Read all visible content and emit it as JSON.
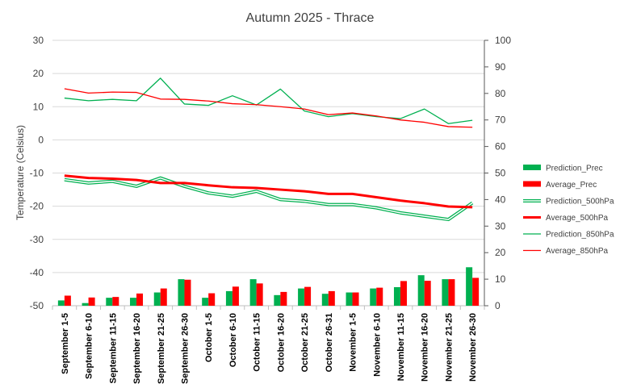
{
  "chart_data": {
    "type": "bar",
    "title": "Autumn 2025 - Thrace",
    "ylabel": "Temperature (Celsius)",
    "ylim": [
      -50,
      30
    ],
    "y2lim": [
      0,
      100
    ],
    "grid": true,
    "legend_position": "right",
    "categories": [
      "September 1-5",
      "September 6-10",
      "September 11-15",
      "September 16-20",
      "September 21-25",
      "September 26-30",
      "October 1-5",
      "October 6-10",
      "October 11-15",
      "October 16-20",
      "October 21-25",
      "October 26-31",
      "November 1-5",
      "November 6-10",
      "November 11-15",
      "November 16-20",
      "November 21-25",
      "November 26-30"
    ],
    "yticks": [
      30,
      20,
      10,
      0,
      -10,
      -20,
      -30,
      -40,
      -50
    ],
    "y2ticks": [
      100,
      90,
      80,
      70,
      60,
      50,
      40,
      30,
      20,
      10,
      0
    ],
    "series": [
      {
        "name": "Prediction_Prec",
        "kind": "bar",
        "axis": "right",
        "color": "#00b050",
        "values": [
          2,
          1,
          3,
          3,
          5,
          10,
          3,
          5.5,
          10,
          4,
          6.5,
          4.5,
          5,
          6.5,
          7,
          11.5,
          10,
          14.5
        ]
      },
      {
        "name": "Average_Prec",
        "kind": "bar",
        "axis": "right",
        "color": "#ff0000",
        "values": [
          3.8,
          3.1,
          3.3,
          4.6,
          6.5,
          9.8,
          4.7,
          7.2,
          8.4,
          5.2,
          7.1,
          5.5,
          5,
          6.8,
          9.3,
          9.4,
          10,
          10.5
        ]
      },
      {
        "name": "Prediction_500hPa",
        "kind": "line",
        "style": "double",
        "axis": "left",
        "color": "#00b050",
        "values": [
          -12,
          -13,
          -12.5,
          -14,
          -11.5,
          -14,
          -16,
          -17,
          -15.5,
          -18,
          -18.5,
          -19.5,
          -19.5,
          -20.5,
          -22,
          -23,
          -24,
          -19
        ]
      },
      {
        "name": "Average_500hPa",
        "kind": "line",
        "axis": "left",
        "color": "#ff0000",
        "values": [
          -10.8,
          -11.5,
          -11.7,
          -12.1,
          -13,
          -13,
          -13.7,
          -14.3,
          -14.5,
          -15,
          -15.5,
          -16.3,
          -16.3,
          -17.3,
          -18.3,
          -19.1,
          -20.1,
          -20.3
        ]
      },
      {
        "name": "Prediction_850hPa",
        "kind": "line",
        "axis": "left",
        "color": "#00b050",
        "values": [
          12.6,
          11.8,
          12.2,
          11.8,
          18.6,
          10.8,
          10.4,
          13.3,
          10.5,
          15.3,
          8.7,
          7.0,
          7.9,
          7.0,
          6.4,
          9.3,
          4.9,
          5.9
        ]
      },
      {
        "name": "Average_850hPa",
        "kind": "line",
        "axis": "left",
        "color": "#ff0000",
        "values": [
          15.4,
          14.1,
          14.4,
          14.3,
          12.3,
          12.2,
          11.7,
          10.9,
          10.6,
          10,
          9.3,
          7.6,
          8.1,
          7.2,
          6.0,
          5.3,
          4.0,
          3.8
        ]
      }
    ]
  }
}
